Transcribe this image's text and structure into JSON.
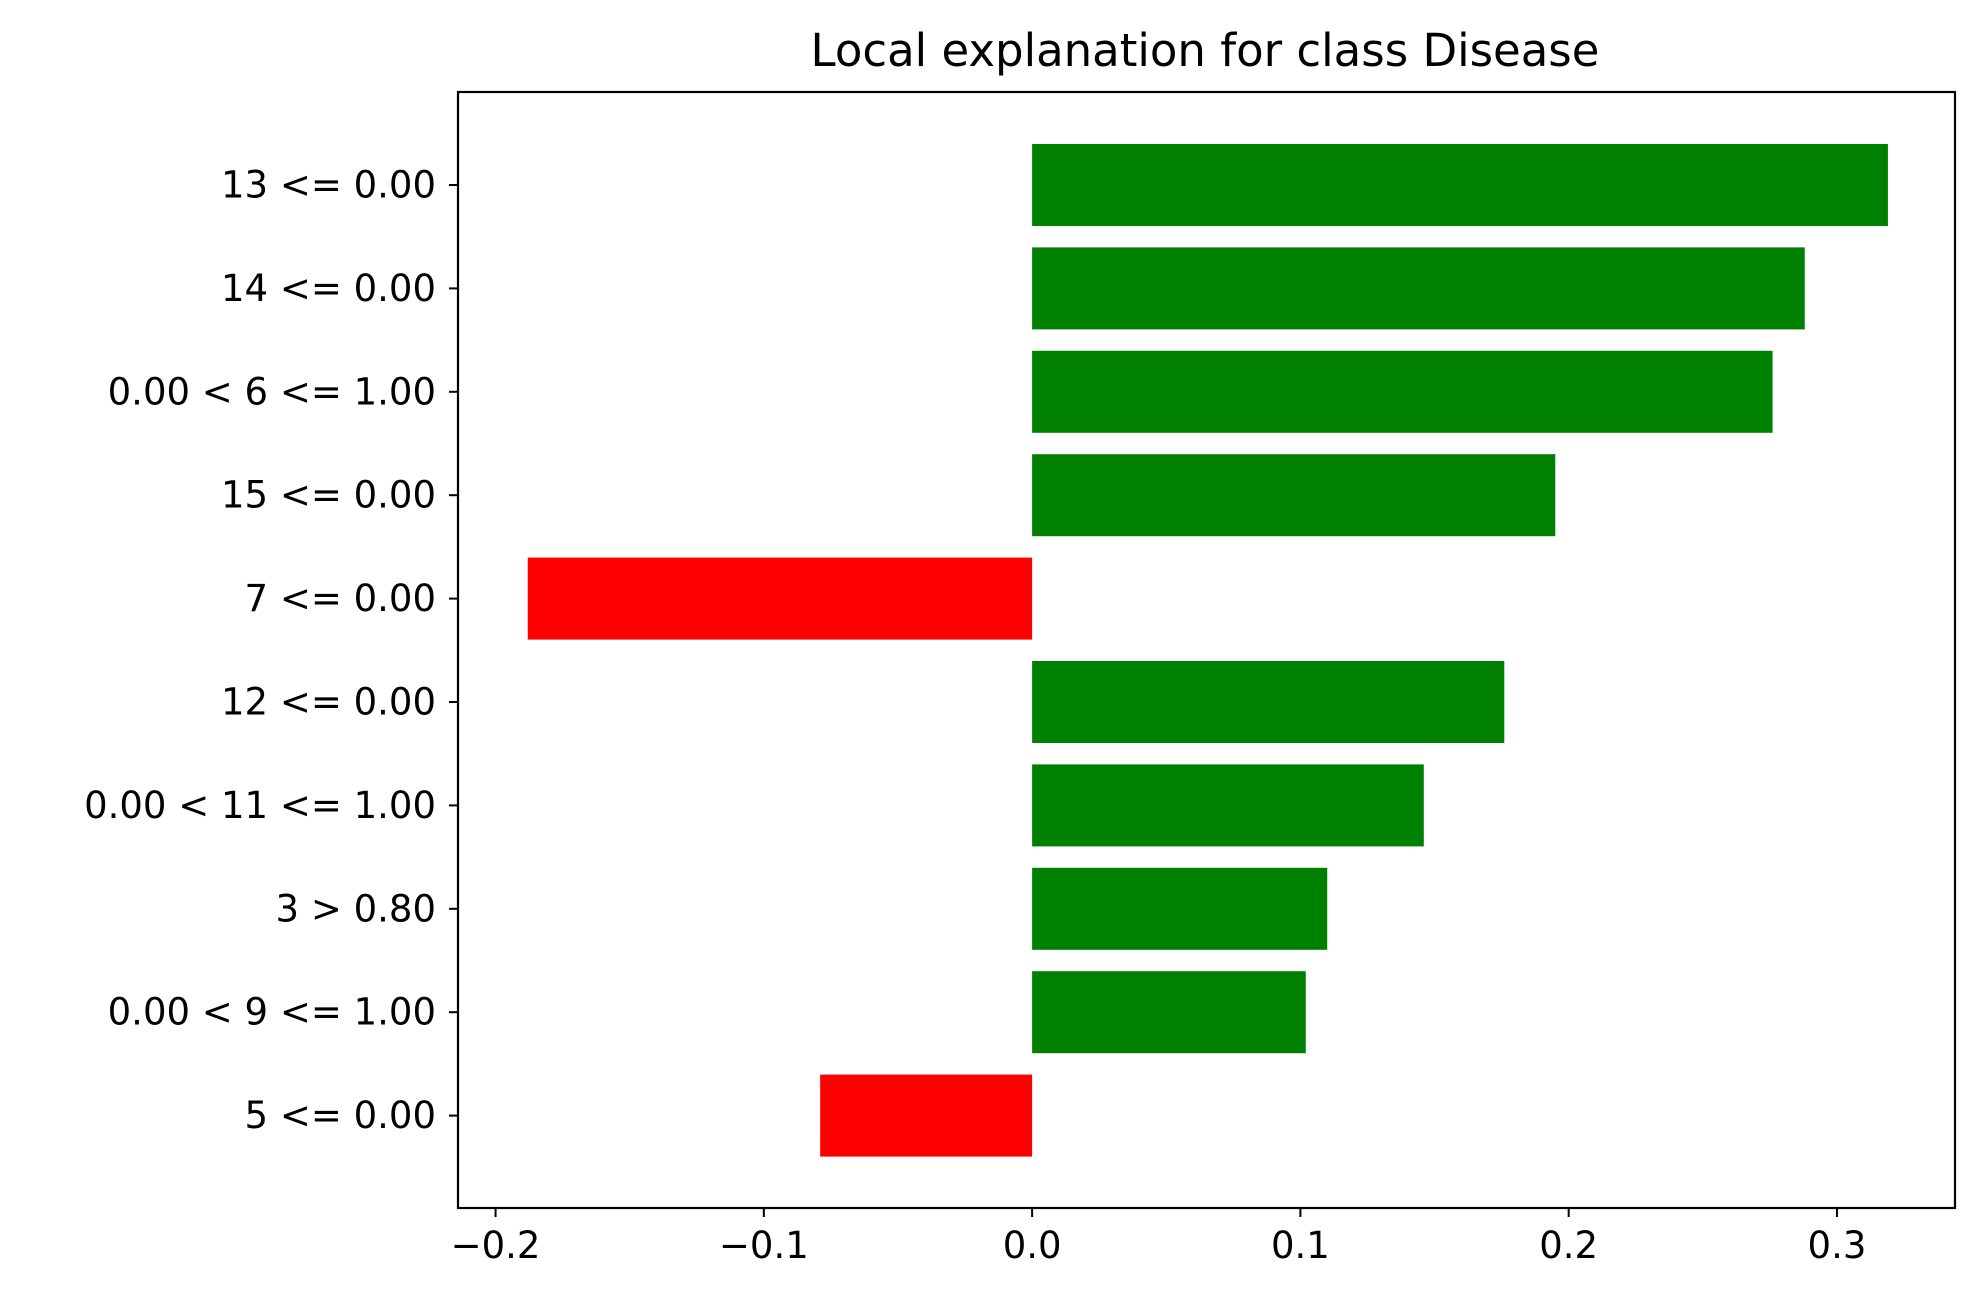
{
  "chart_data": {
    "type": "bar",
    "orientation": "horizontal",
    "title": "Local explanation for class Disease",
    "xlabel": "",
    "ylabel": "",
    "categories": [
      "13 <= 0.00",
      "14 <= 0.00",
      "0.00 < 6 <= 1.00",
      "15 <= 0.00",
      "7 <= 0.00",
      "12 <= 0.00",
      "0.00 < 11 <= 1.00",
      "3 > 0.80",
      "0.00 < 9 <= 1.00",
      "5 <= 0.00"
    ],
    "values": [
      0.319,
      0.288,
      0.276,
      0.195,
      -0.188,
      0.176,
      0.146,
      0.11,
      0.102,
      -0.079
    ],
    "xlim": [
      -0.214,
      0.344
    ],
    "xticks": [
      -0.2,
      -0.1,
      0.0,
      0.1,
      0.2,
      0.3
    ],
    "xtick_labels": [
      "−0.2",
      "−0.1",
      "0.0",
      "0.1",
      "0.2",
      "0.3"
    ],
    "colors": {
      "positive": "#008000",
      "negative": "#ff0000"
    },
    "grid": false,
    "legend": "none"
  }
}
